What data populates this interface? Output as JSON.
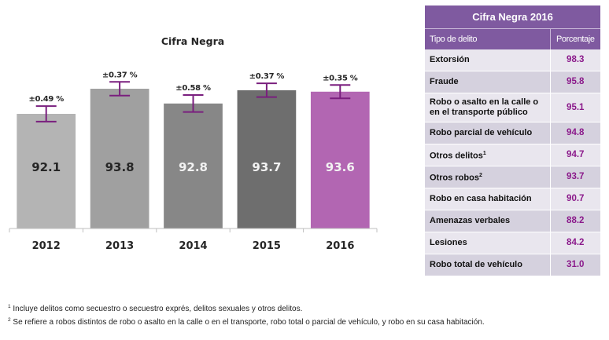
{
  "chart_data": {
    "type": "bar",
    "title": "Cifra Negra",
    "categories": [
      "2012",
      "2013",
      "2014",
      "2015",
      "2016"
    ],
    "values": [
      92.1,
      93.8,
      92.8,
      93.7,
      93.6
    ],
    "value_labels": [
      "92.1",
      "93.8",
      "92.8",
      "93.7",
      "93.6"
    ],
    "error_margin_percent": [
      0.49,
      0.37,
      0.58,
      0.37,
      0.35
    ],
    "error_labels": [
      "±0.49 %",
      "±0.37 %",
      "±0.58 %",
      "±0.37 %",
      "±0.35 %"
    ],
    "bar_colors": [
      "#b4b4b4",
      "#a0a0a0",
      "#878787",
      "#6e6e6e",
      "#b266b2"
    ],
    "value_label_colors": [
      "#262626",
      "#262626",
      "#f2f2f2",
      "#f2f2f2",
      "#f2f2f2"
    ],
    "error_bar_color": "#7a1f7e",
    "xlabel": "",
    "ylabel": "",
    "ylim": [
      88,
      95
    ],
    "grid": false,
    "legend": "none"
  },
  "table": {
    "title": "Cifra Negra 2016",
    "headers": [
      "Tipo de delito",
      "Porcentaje"
    ],
    "rows": [
      {
        "label": "Extorsión",
        "sup": "",
        "value": "98.3"
      },
      {
        "label": "Fraude",
        "sup": "",
        "value": "95.8"
      },
      {
        "label": "Robo o asalto en la calle o en el transporte público",
        "sup": "",
        "value": "95.1"
      },
      {
        "label": "Robo parcial de vehículo",
        "sup": "",
        "value": "94.8"
      },
      {
        "label": "Otros delitos",
        "sup": "1",
        "value": "94.7"
      },
      {
        "label": "Otros robos",
        "sup": "2",
        "value": "93.7"
      },
      {
        "label": "Robo en casa habitación",
        "sup": "",
        "value": "90.7"
      },
      {
        "label": "Amenazas verbales",
        "sup": "",
        "value": "88.2"
      },
      {
        "label": "Lesiones",
        "sup": "",
        "value": "84.2"
      },
      {
        "label": "Robo total de vehículo",
        "sup": "",
        "value": "31.0"
      }
    ],
    "accent_color": "#7f5aa0",
    "value_color": "#8b1a8b"
  },
  "footnotes": [
    {
      "marker": "1",
      "text": "Incluye delitos como secuestro o secuestro exprés, delitos sexuales y otros delitos."
    },
    {
      "marker": "2",
      "text": "Se refiere a robos distintos de robo o asalto en la calle o en el transporte, robo total o parcial de vehículo, y robo en su casa habitación."
    }
  ]
}
